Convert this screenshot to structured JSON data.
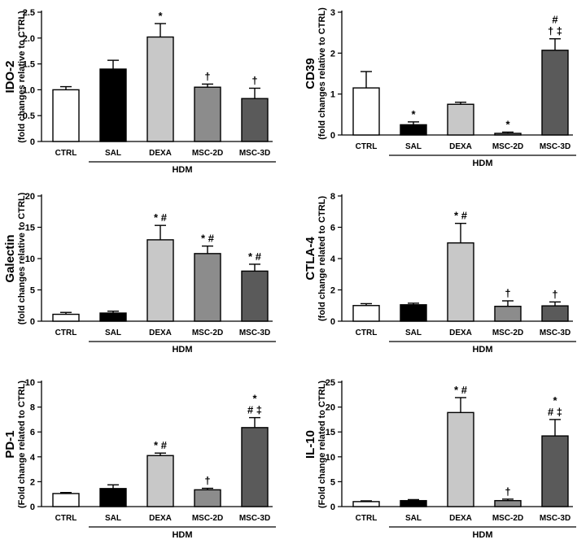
{
  "chart_data": [
    {
      "type": "bar",
      "ylabel": "IDO-2",
      "ylabel_sub": "(fold changes relative to CTRL)",
      "categories": [
        "CTRL",
        "SAL",
        "DEXA",
        "MSC-2D",
        "MSC-3D"
      ],
      "values": [
        1.0,
        1.4,
        2.02,
        1.05,
        0.83
      ],
      "errors": [
        0.06,
        0.17,
        0.26,
        0.06,
        0.2
      ],
      "ylim": [
        0,
        2.5
      ],
      "yticks": [
        "0",
        "0.5",
        "1.0",
        "1.5",
        "2.0",
        "2.5"
      ],
      "annotations": [
        "",
        "",
        "*",
        "†",
        "†"
      ],
      "group_label": "HDM",
      "bar_colors": [
        "#ffffff",
        "#000000",
        "#c8c8c8",
        "#8c8c8c",
        "#5a5a5a"
      ]
    },
    {
      "type": "bar",
      "ylabel": "CD39",
      "ylabel_sub": "(fold changes relative to CTRL)",
      "categories": [
        "CTRL",
        "SAL",
        "DEXA",
        "MSC-2D",
        "MSC-3D"
      ],
      "values": [
        1.15,
        0.25,
        0.75,
        0.04,
        2.07
      ],
      "errors": [
        0.4,
        0.07,
        0.05,
        0.03,
        0.28
      ],
      "ylim": [
        0,
        3
      ],
      "yticks": [
        "0",
        "1",
        "2",
        "3"
      ],
      "annotations": [
        "",
        "*",
        "",
        "*",
        "# / † ‡"
      ],
      "group_label": "HDM",
      "bar_colors": [
        "#ffffff",
        "#000000",
        "#c8c8c8",
        "#8c8c8c",
        "#5a5a5a"
      ]
    },
    {
      "type": "bar",
      "ylabel": "Galectin",
      "ylabel_sub": "(fold changes relative to CTRL)",
      "categories": [
        "CTRL",
        "SAL",
        "DEXA",
        "MSC-2D",
        "MSC-3D"
      ],
      "values": [
        1.1,
        1.3,
        13.0,
        10.8,
        8.0
      ],
      "errors": [
        0.3,
        0.3,
        2.3,
        1.2,
        1.1
      ],
      "ylim": [
        0,
        20
      ],
      "yticks": [
        "0",
        "5",
        "10",
        "15",
        "20"
      ],
      "annotations": [
        "",
        "",
        "* #",
        "* #",
        "* #"
      ],
      "group_label": "HDM",
      "bar_colors": [
        "#ffffff",
        "#000000",
        "#c8c8c8",
        "#8c8c8c",
        "#5a5a5a"
      ]
    },
    {
      "type": "bar",
      "ylabel": "CTLA-4",
      "ylabel_sub": "(fold change related to CTRL)",
      "categories": [
        "CTRL",
        "SAL",
        "DEXA",
        "MSC-2D",
        "MSC-3D"
      ],
      "values": [
        1.0,
        1.05,
        5.0,
        0.95,
        0.98
      ],
      "errors": [
        0.12,
        0.1,
        1.25,
        0.35,
        0.25
      ],
      "ylim": [
        0,
        8
      ],
      "yticks": [
        "0",
        "2",
        "4",
        "6",
        "8"
      ],
      "annotations": [
        "",
        "",
        "* #",
        "†",
        "†"
      ],
      "group_label": "HDM",
      "bar_colors": [
        "#ffffff",
        "#000000",
        "#c8c8c8",
        "#8c8c8c",
        "#5a5a5a"
      ]
    },
    {
      "type": "bar",
      "ylabel": "PD-1",
      "ylabel_sub": "(Fold change related to CTRL)",
      "categories": [
        "CTRL",
        "SAL",
        "DEXA",
        "MSC-2D",
        "MSC-3D"
      ],
      "values": [
        1.05,
        1.45,
        4.1,
        1.35,
        6.35
      ],
      "errors": [
        0.08,
        0.3,
        0.2,
        0.12,
        0.8
      ],
      "ylim": [
        0,
        10
      ],
      "yticks": [
        "0",
        "2",
        "4",
        "6",
        "8",
        "10"
      ],
      "annotations": [
        "",
        "",
        "* #",
        "†",
        "* / # ‡"
      ],
      "group_label": "HDM",
      "bar_colors": [
        "#ffffff",
        "#000000",
        "#c8c8c8",
        "#8c8c8c",
        "#5a5a5a"
      ]
    },
    {
      "type": "bar",
      "ylabel": "IL-10",
      "ylabel_sub": "(Fold change related to CTRL)",
      "categories": [
        "CTRL",
        "SAL",
        "DEXA",
        "MSC-2D",
        "MSC-3D"
      ],
      "values": [
        1.0,
        1.2,
        18.9,
        1.2,
        14.2
      ],
      "errors": [
        0.15,
        0.2,
        3.0,
        0.3,
        3.3
      ],
      "ylim": [
        0,
        25
      ],
      "yticks": [
        "0",
        "5",
        "10",
        "15",
        "20",
        "25"
      ],
      "annotations": [
        "",
        "",
        "* #",
        "†",
        "* / # ‡"
      ],
      "group_label": "HDM",
      "bar_colors": [
        "#ffffff",
        "#000000",
        "#c8c8c8",
        "#8c8c8c",
        "#5a5a5a"
      ]
    }
  ]
}
